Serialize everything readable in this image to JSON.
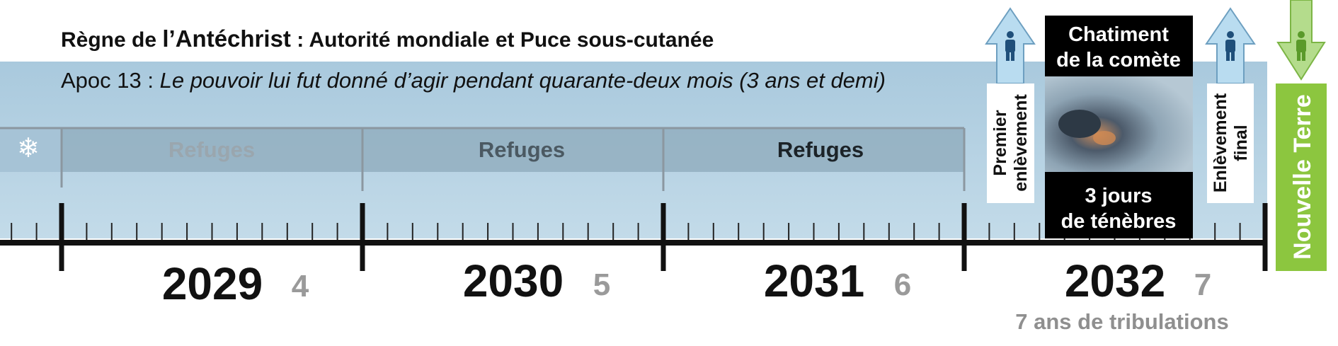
{
  "header": {
    "title_prefix": "Règne de ",
    "title_bold": "l’Antéchrist",
    "title_suffix": " : Autorité mondiale et Puce sous-cutanée",
    "subtitle_prefix": "Apoc 13 : ",
    "subtitle_italic": "Le pouvoir lui fut donné d’agir pendant quarante-deux mois (3 ans et demi)"
  },
  "refuges": [
    "Refuges",
    "Refuges",
    "Refuges"
  ],
  "years": [
    {
      "year": "2029",
      "number": "4"
    },
    {
      "year": "2030",
      "number": "5"
    },
    {
      "year": "2031",
      "number": "6"
    },
    {
      "year": "2032",
      "number": "7"
    }
  ],
  "events": {
    "first_rapture": [
      "Premier",
      "enlèvement"
    ],
    "comet": [
      "Chatiment",
      "de la comète"
    ],
    "darkness": [
      "3 jours",
      "de ténèbres"
    ],
    "final_rapture": [
      "Enlèvement",
      "final"
    ],
    "new_earth": "Nouvelle Terre"
  },
  "footer": "7 ans de tribulations"
}
